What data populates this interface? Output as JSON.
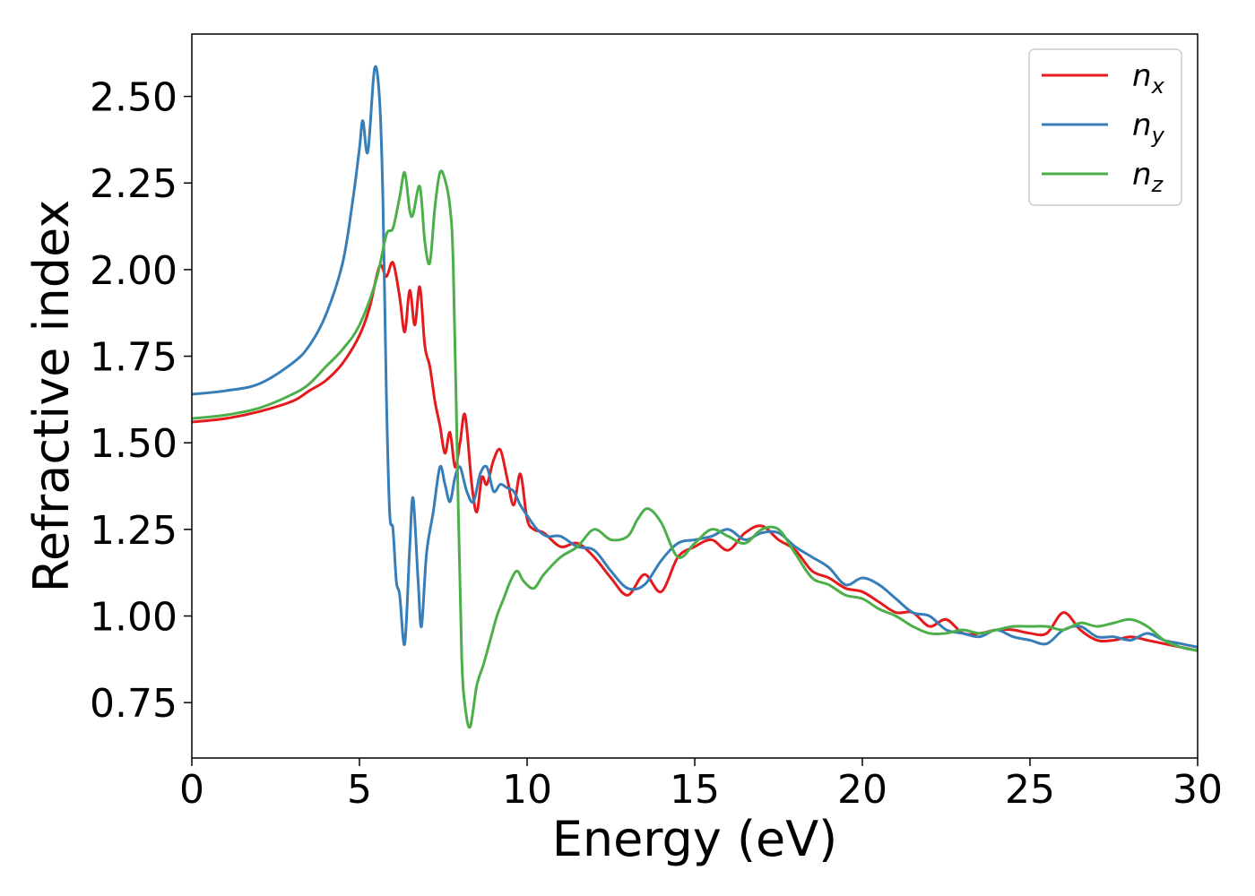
{
  "chart_data": {
    "type": "line",
    "title": "",
    "xlabel": "Energy (eV)",
    "ylabel": "Refractive index",
    "xlim": [
      0,
      30
    ],
    "ylim": [
      0.59,
      2.68
    ],
    "xticks": [
      0,
      5,
      10,
      15,
      20,
      25,
      30
    ],
    "xtick_labels": [
      "0",
      "5",
      "10",
      "15",
      "20",
      "25",
      "30"
    ],
    "yticks": [
      0.75,
      1.0,
      1.25,
      1.5,
      1.75,
      2.0,
      2.25,
      2.5
    ],
    "ytick_labels": [
      "0.75",
      "1.00",
      "1.25",
      "1.50",
      "1.75",
      "2.00",
      "2.25",
      "2.50"
    ],
    "grid": false,
    "legend_position": "top-right",
    "series": [
      {
        "name": "n",
        "subscript": "x",
        "color": "#e41a1c",
        "x": [
          0,
          1,
          2,
          3,
          3.5,
          4,
          4.5,
          5,
          5.3,
          5.6,
          5.8,
          6.0,
          6.2,
          6.35,
          6.5,
          6.65,
          6.8,
          6.95,
          7.1,
          7.25,
          7.4,
          7.55,
          7.7,
          7.85,
          8.0,
          8.15,
          8.35,
          8.5,
          8.65,
          8.8,
          9.0,
          9.2,
          9.4,
          9.6,
          9.8,
          10.0,
          10.2,
          10.5,
          11,
          11.5,
          12,
          12.5,
          13,
          13.5,
          14,
          14.5,
          15,
          15.5,
          16,
          16.5,
          17,
          17.5,
          18,
          18.5,
          19,
          19.5,
          20,
          20.5,
          21,
          21.5,
          22,
          22.5,
          23,
          23.5,
          24,
          24.5,
          25,
          25.5,
          26,
          26.5,
          27,
          27.5,
          28,
          28.5,
          29,
          29.5,
          30
        ],
        "y": [
          1.56,
          1.57,
          1.59,
          1.62,
          1.65,
          1.68,
          1.73,
          1.81,
          1.89,
          2.01,
          1.98,
          2.02,
          1.92,
          1.82,
          1.94,
          1.84,
          1.95,
          1.78,
          1.72,
          1.62,
          1.55,
          1.47,
          1.53,
          1.43,
          1.5,
          1.58,
          1.38,
          1.3,
          1.4,
          1.38,
          1.45,
          1.48,
          1.4,
          1.32,
          1.41,
          1.28,
          1.25,
          1.24,
          1.2,
          1.21,
          1.17,
          1.11,
          1.06,
          1.12,
          1.07,
          1.17,
          1.2,
          1.22,
          1.19,
          1.24,
          1.26,
          1.22,
          1.19,
          1.13,
          1.11,
          1.08,
          1.07,
          1.04,
          1.01,
          1.01,
          0.97,
          0.99,
          0.95,
          0.95,
          0.96,
          0.96,
          0.95,
          0.95,
          1.01,
          0.96,
          0.93,
          0.93,
          0.94,
          0.93,
          0.92,
          0.91,
          0.9
        ]
      },
      {
        "name": "n",
        "subscript": "y",
        "color": "#377eb8",
        "x": [
          0,
          1,
          2,
          3,
          3.5,
          4,
          4.5,
          4.8,
          5.0,
          5.1,
          5.25,
          5.45,
          5.6,
          5.7,
          5.8,
          5.9,
          6.0,
          6.1,
          6.2,
          6.35,
          6.5,
          6.6,
          6.75,
          6.85,
          7.0,
          7.2,
          7.4,
          7.55,
          7.7,
          7.85,
          8.0,
          8.2,
          8.4,
          8.6,
          8.8,
          9.0,
          9.2,
          9.4,
          9.6,
          9.8,
          10.0,
          10.3,
          10.6,
          11,
          11.5,
          12,
          12.5,
          13,
          13.5,
          14,
          14.5,
          15,
          15.5,
          16,
          16.5,
          17,
          17.5,
          18,
          18.5,
          19,
          19.5,
          20,
          20.5,
          21,
          21.5,
          22,
          22.5,
          23,
          23.5,
          24,
          24.5,
          25,
          25.5,
          26,
          26.5,
          27,
          27.5,
          28,
          28.5,
          29,
          29.5,
          30
        ],
        "y": [
          1.64,
          1.65,
          1.67,
          1.73,
          1.78,
          1.87,
          2.02,
          2.2,
          2.35,
          2.43,
          2.34,
          2.58,
          2.49,
          2.2,
          1.65,
          1.3,
          1.25,
          1.1,
          1.06,
          0.92,
          1.2,
          1.34,
          1.1,
          0.97,
          1.18,
          1.3,
          1.43,
          1.38,
          1.33,
          1.4,
          1.43,
          1.36,
          1.33,
          1.41,
          1.43,
          1.36,
          1.38,
          1.37,
          1.36,
          1.32,
          1.29,
          1.25,
          1.23,
          1.23,
          1.2,
          1.19,
          1.13,
          1.08,
          1.09,
          1.16,
          1.21,
          1.22,
          1.23,
          1.25,
          1.22,
          1.24,
          1.24,
          1.2,
          1.17,
          1.14,
          1.09,
          1.11,
          1.09,
          1.05,
          1.01,
          1.0,
          0.96,
          0.95,
          0.94,
          0.96,
          0.94,
          0.93,
          0.92,
          0.96,
          0.97,
          0.94,
          0.94,
          0.93,
          0.95,
          0.93,
          0.92,
          0.91
        ]
      },
      {
        "name": "n",
        "subscript": "z",
        "color": "#4daf4a",
        "x": [
          0,
          1,
          2,
          3,
          3.5,
          4,
          4.5,
          5.0,
          5.5,
          5.8,
          6.0,
          6.2,
          6.35,
          6.5,
          6.6,
          6.8,
          6.95,
          7.1,
          7.25,
          7.4,
          7.55,
          7.7,
          7.8,
          7.95,
          8.05,
          8.15,
          8.3,
          8.5,
          8.7,
          8.9,
          9.1,
          9.3,
          9.5,
          9.7,
          9.9,
          10.2,
          10.5,
          11,
          11.5,
          12,
          12.5,
          13,
          13.3,
          13.6,
          14,
          14.5,
          15,
          15.5,
          16,
          16.5,
          17,
          17.5,
          18,
          18.5,
          19,
          19.5,
          20,
          20.5,
          21,
          21.5,
          22,
          22.5,
          23,
          23.5,
          24,
          24.5,
          25,
          25.5,
          26,
          26.5,
          27,
          27.5,
          28,
          28.5,
          29,
          29.5,
          30
        ],
        "y": [
          1.57,
          1.58,
          1.6,
          1.64,
          1.67,
          1.72,
          1.77,
          1.84,
          1.97,
          2.1,
          2.12,
          2.21,
          2.28,
          2.17,
          2.16,
          2.24,
          2.08,
          2.02,
          2.18,
          2.28,
          2.26,
          2.18,
          2.0,
          1.3,
          0.88,
          0.74,
          0.68,
          0.8,
          0.86,
          0.93,
          1.0,
          1.05,
          1.1,
          1.13,
          1.1,
          1.08,
          1.12,
          1.17,
          1.2,
          1.25,
          1.22,
          1.23,
          1.28,
          1.31,
          1.27,
          1.17,
          1.21,
          1.25,
          1.23,
          1.21,
          1.25,
          1.25,
          1.18,
          1.11,
          1.09,
          1.06,
          1.05,
          1.02,
          1.0,
          0.97,
          0.95,
          0.95,
          0.96,
          0.95,
          0.96,
          0.97,
          0.97,
          0.97,
          0.96,
          0.98,
          0.97,
          0.98,
          0.99,
          0.97,
          0.93,
          0.91,
          0.9
        ]
      }
    ]
  }
}
